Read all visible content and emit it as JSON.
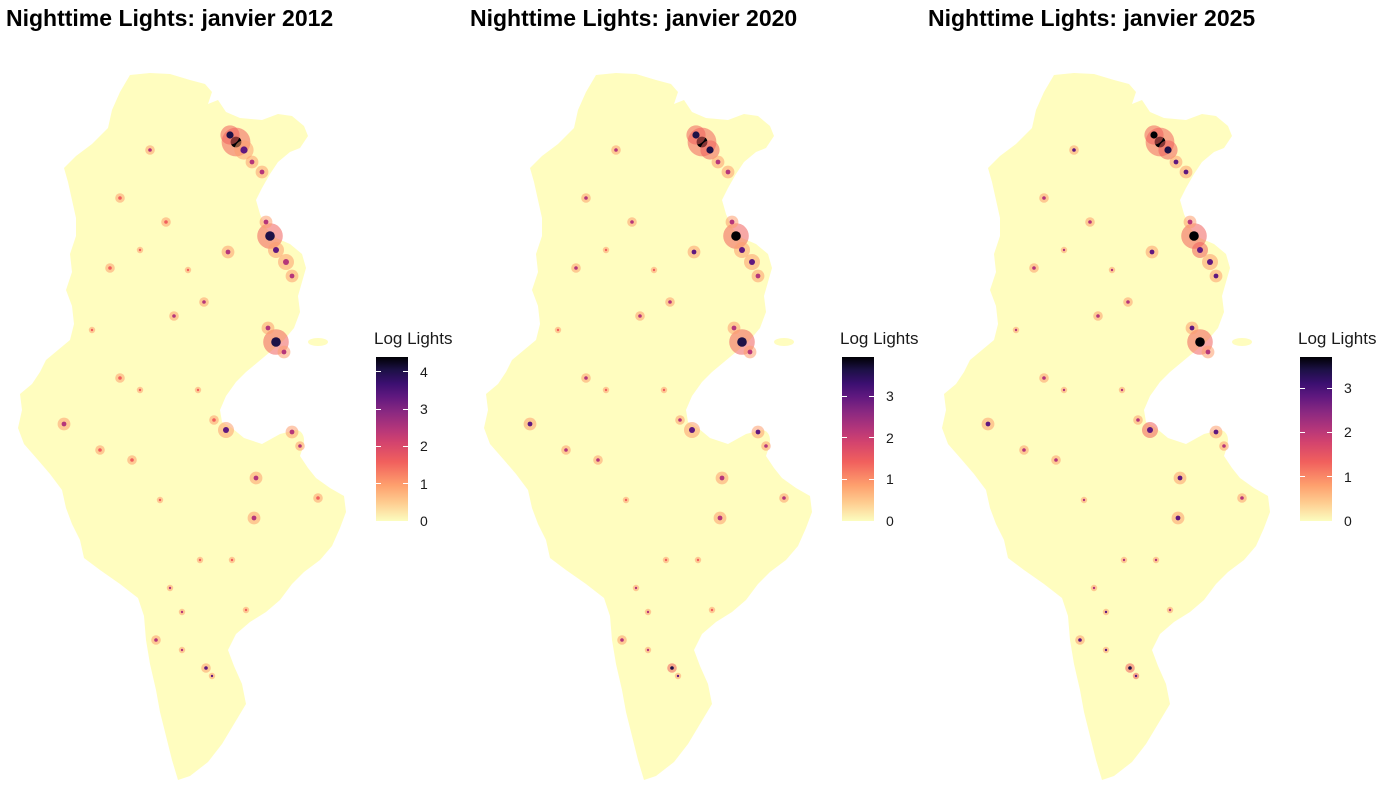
{
  "maps": [
    {
      "title": "Nighttime Lights: janvier 2012",
      "legend": {
        "title": "Log Lights",
        "max": 4.4,
        "ticks": [
          {
            "value": 0,
            "label": "0"
          },
          {
            "value": 1,
            "label": "1"
          },
          {
            "value": 2,
            "label": "2"
          },
          {
            "value": 3,
            "label": "3"
          },
          {
            "value": 4,
            "label": "4"
          }
        ]
      }
    },
    {
      "title": "Nighttime Lights: janvier 2020",
      "legend": {
        "title": "Log Lights",
        "max": 3.95,
        "ticks": [
          {
            "value": 0,
            "label": "0"
          },
          {
            "value": 1,
            "label": "1"
          },
          {
            "value": 2,
            "label": "2"
          },
          {
            "value": 3,
            "label": "3"
          }
        ]
      }
    },
    {
      "title": "Nighttime Lights: janvier 2025",
      "legend": {
        "title": "Log Lights",
        "max": 3.7,
        "ticks": [
          {
            "value": 0,
            "label": "0"
          },
          {
            "value": 1,
            "label": "1"
          },
          {
            "value": 2,
            "label": "2"
          },
          {
            "value": 3,
            "label": "3"
          }
        ]
      }
    }
  ],
  "colors": {
    "land_base": "#fffdbf",
    "scale": [
      "#fcfdbf",
      "#fe9f6d",
      "#f1605d",
      "#b5367a",
      "#5f187f",
      "#1d1147",
      "#000004"
    ],
    "background": "#ffffff"
  }
}
